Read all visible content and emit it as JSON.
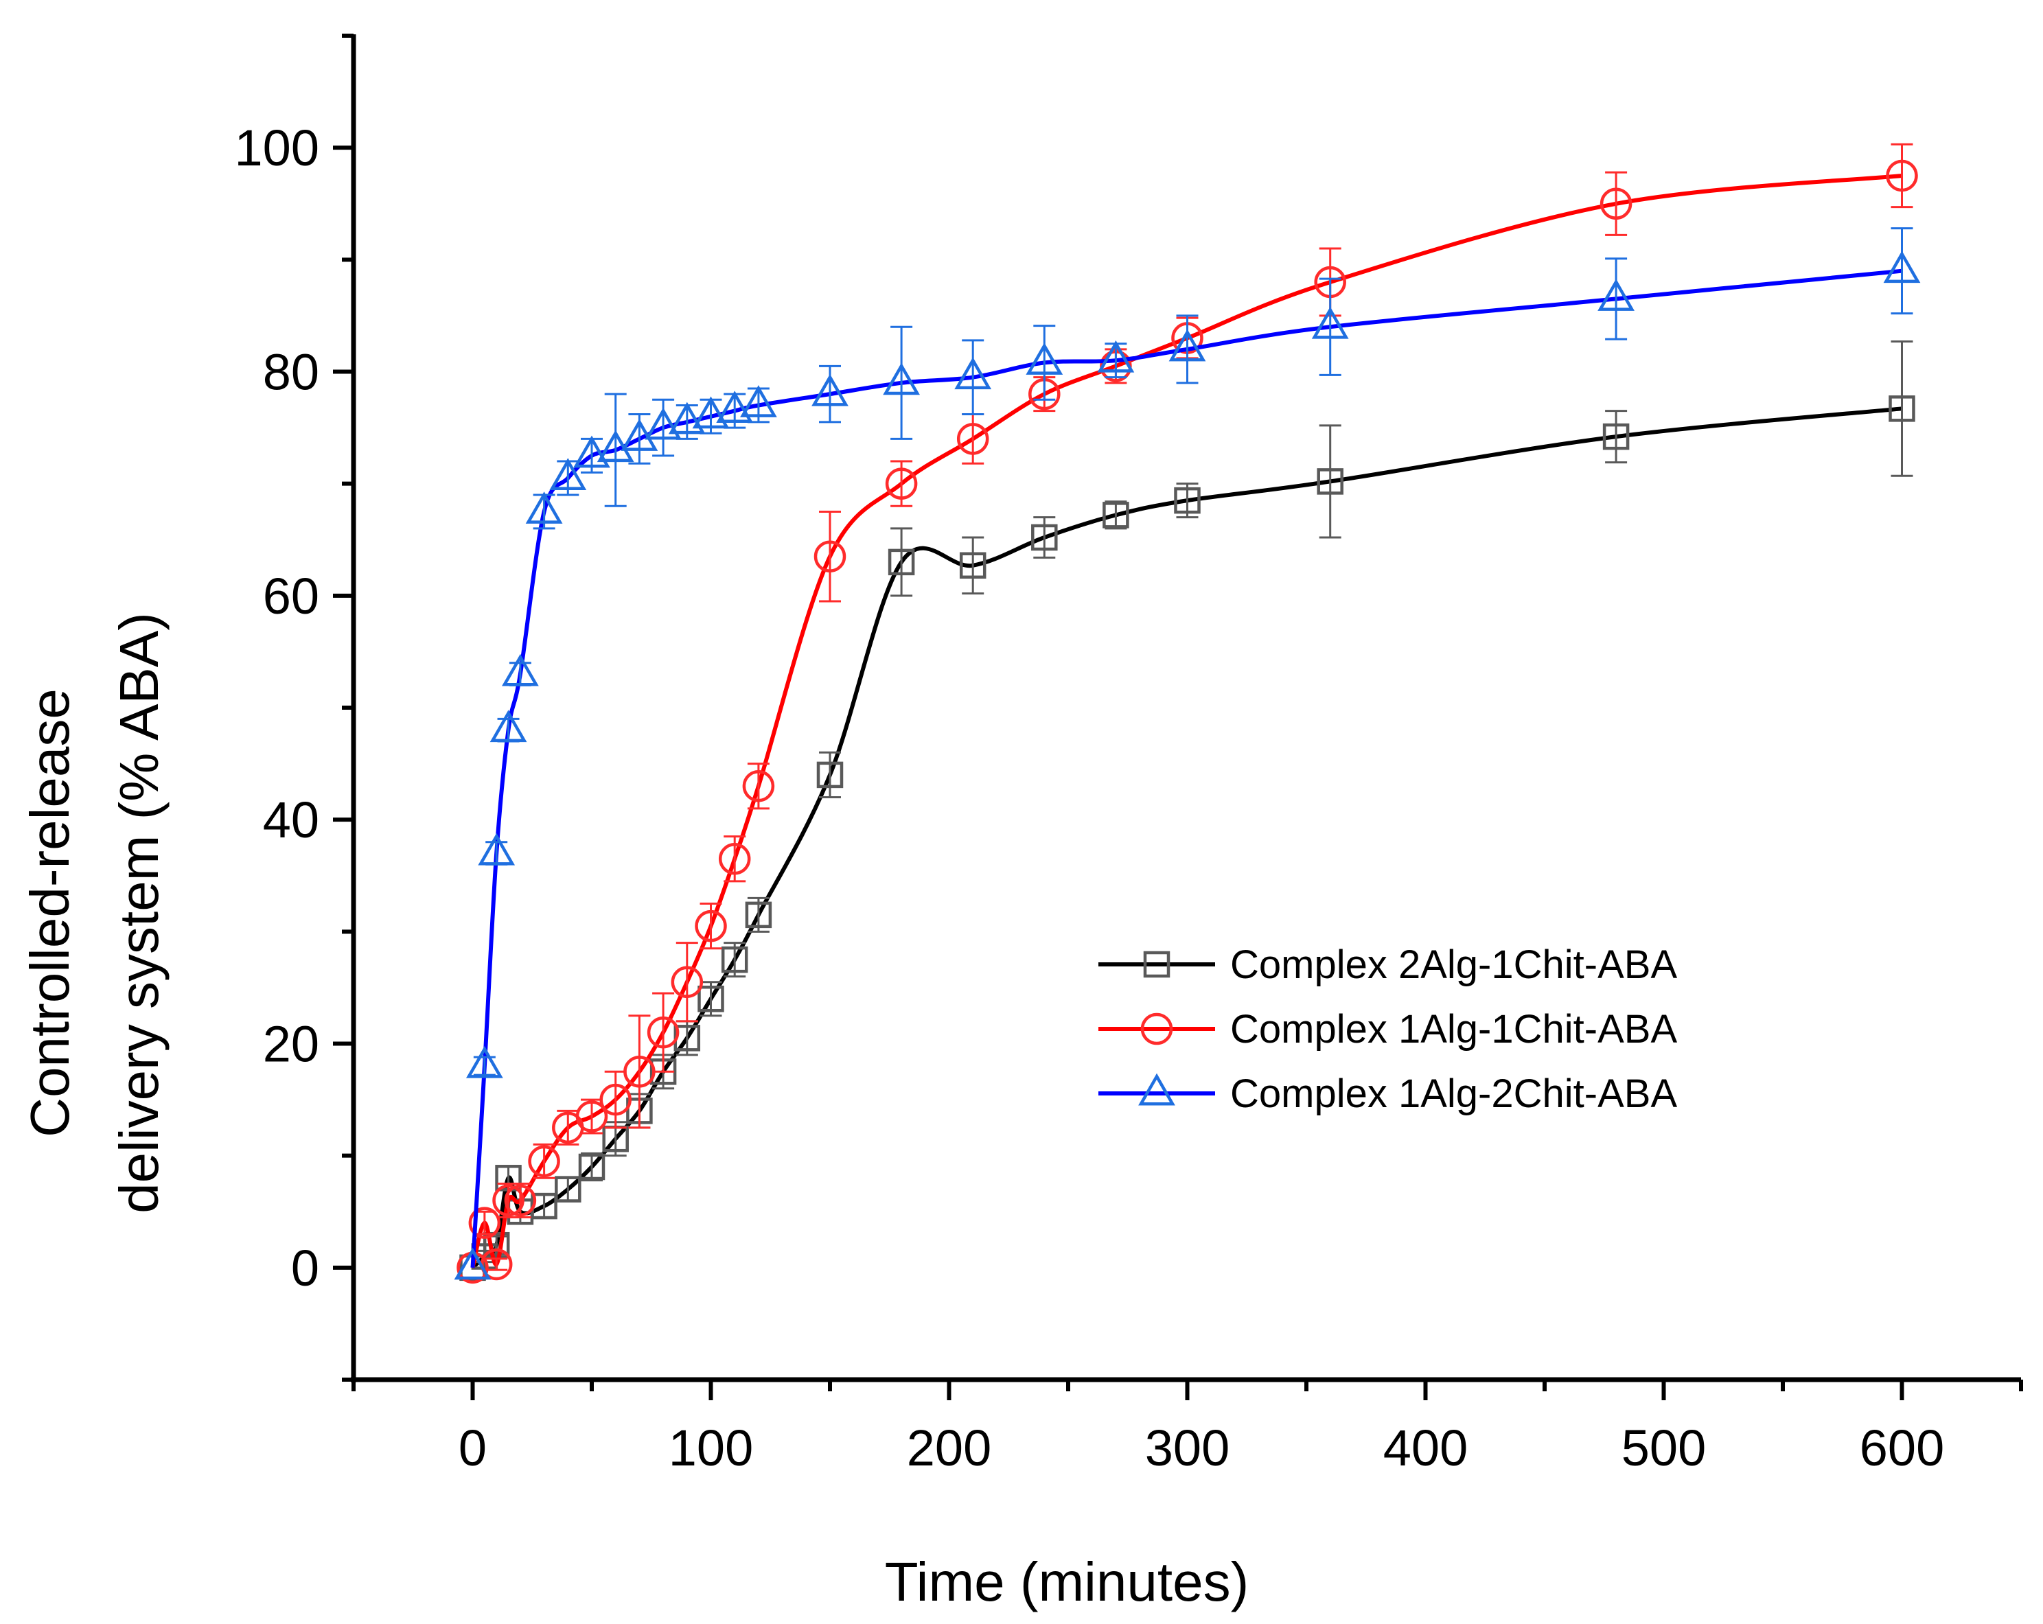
{
  "chart_data": {
    "type": "line",
    "title": "",
    "xlabel": "Time (minutes)",
    "ylabel_lines": [
      "Controlled-release",
      "delivery system (% ABA)"
    ],
    "xlim": [
      -50,
      650
    ],
    "ylim": [
      -10,
      110
    ],
    "xticks": [
      0,
      100,
      200,
      300,
      400,
      500,
      600
    ],
    "yticks": [
      0,
      20,
      40,
      60,
      80,
      100
    ],
    "legend_position": "center-right",
    "series": [
      {
        "name": "Complex 2Alg-1Chit-ABA",
        "marker": "square",
        "line_color": "#000000",
        "marker_color": "#595959",
        "x": [
          0,
          5,
          10,
          15,
          20,
          30,
          40,
          50,
          60,
          70,
          80,
          90,
          100,
          110,
          120,
          150,
          180,
          210,
          240,
          270,
          300,
          360,
          480,
          600
        ],
        "y": [
          0,
          1,
          2,
          8,
          5,
          5.5,
          7,
          9,
          11.5,
          14,
          17.5,
          20.5,
          24,
          27.5,
          31.5,
          44,
          63,
          62.7,
          65.2,
          67.2,
          68.5,
          70.2,
          74.2,
          76.7
        ],
        "err": [
          0,
          0.5,
          0.8,
          1,
          1,
          1,
          1,
          1.2,
          1.5,
          1.5,
          1.5,
          1.5,
          1.5,
          1.5,
          1.5,
          2,
          3,
          2.5,
          1.8,
          1.2,
          1.5,
          5,
          2.3,
          6
        ]
      },
      {
        "name": "Complex 1Alg-1Chit-ABA",
        "marker": "circle",
        "line_color": "#ff0000",
        "marker_color": "#ff2b2b",
        "x": [
          0,
          5,
          10,
          15,
          20,
          30,
          40,
          50,
          60,
          70,
          80,
          90,
          100,
          110,
          120,
          150,
          180,
          210,
          240,
          270,
          300,
          360,
          480,
          600
        ],
        "y": [
          0,
          4,
          0.3,
          6,
          6,
          9.5,
          12.5,
          13.5,
          15,
          17.5,
          21,
          25.5,
          30.5,
          36.5,
          43,
          63.5,
          70,
          74,
          78,
          80.5,
          83,
          88,
          95,
          97.5
        ],
        "err": [
          0,
          1,
          0.5,
          1.5,
          1.5,
          1.5,
          1.5,
          1.5,
          2.5,
          5,
          3.5,
          3.5,
          2,
          2,
          2,
          4,
          2,
          2.2,
          1.5,
          1.5,
          1.8,
          3,
          2.8,
          2.8
        ]
      },
      {
        "name": "Complex 1Alg-2Chit-ABA",
        "marker": "triangle",
        "line_color": "#0000ff",
        "marker_color": "#1f6fe0",
        "x": [
          0,
          5,
          10,
          15,
          20,
          30,
          40,
          50,
          60,
          70,
          80,
          90,
          100,
          110,
          120,
          150,
          180,
          210,
          240,
          270,
          300,
          360,
          480,
          600
        ],
        "y": [
          0,
          18,
          37,
          48,
          53,
          67.5,
          70.5,
          72.5,
          73,
          74,
          75,
          75.5,
          76,
          76.5,
          77,
          78,
          79,
          79.5,
          80.8,
          81,
          82,
          84,
          86.5,
          89
        ],
        "err": [
          0,
          0.8,
          1,
          1,
          1,
          1.5,
          1.5,
          1.5,
          5,
          2.2,
          2.5,
          1.5,
          1.5,
          1.5,
          1.5,
          2.5,
          5,
          3.3,
          3.3,
          1.5,
          3,
          4.3,
          3.6,
          3.8
        ]
      }
    ]
  }
}
